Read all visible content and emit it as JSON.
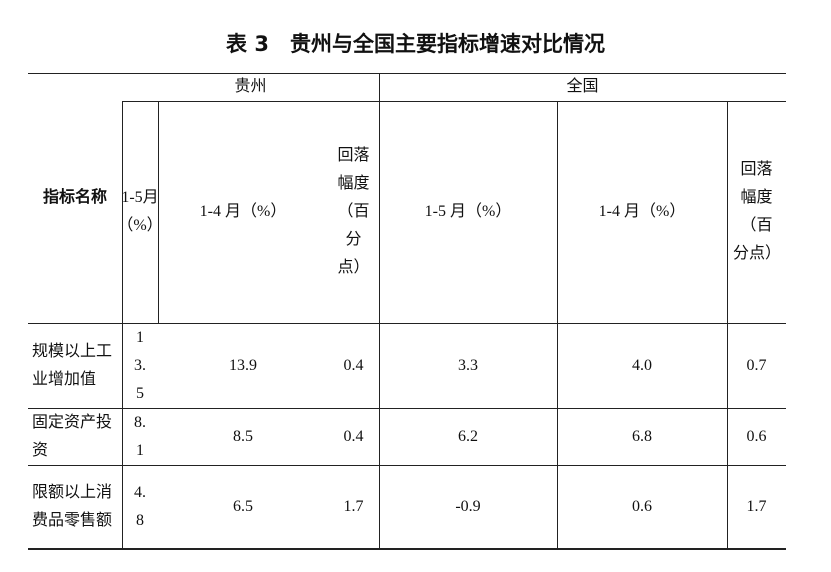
{
  "title": "表 3　贵州与全国主要指标增速对比情况",
  "table": {
    "header": {
      "corner": "指标名称",
      "groups": [
        "贵州",
        "全国"
      ],
      "columns": [
        "1-5月（%）",
        "1-4 月（%）",
        "回落幅度（百分点）",
        "1-5 月（%）",
        "1-4 月（%）",
        "回落幅度（百分点）"
      ]
    },
    "rows": [
      [
        "规模以上工业增加值",
        "13.5",
        "13.9",
        "0.4",
        "3.3",
        "4.0",
        "0.7"
      ],
      [
        "固定资产投资",
        "8.1",
        "8.5",
        "0.4",
        "6.2",
        "6.8",
        "0.6"
      ],
      [
        "限额以上消费品零售额",
        "4.8",
        "6.5",
        "1.7",
        "-0.9",
        "0.6",
        "1.7"
      ]
    ]
  }
}
